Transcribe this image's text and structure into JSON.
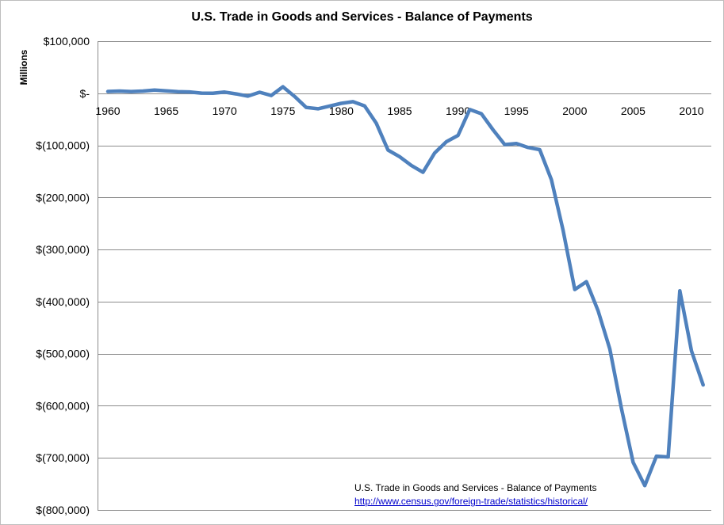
{
  "chart_data": {
    "type": "line",
    "title": "U.S. Trade in Goods and Services - Balance of Payments",
    "ylabel": "Millions",
    "xlabel": "",
    "xlim": [
      1960,
      2011
    ],
    "ylim": [
      -800000,
      100000
    ],
    "x_ticks": [
      1960,
      1965,
      1970,
      1975,
      1980,
      1985,
      1990,
      1995,
      2000,
      2005,
      2010
    ],
    "y_ticks": [
      100000,
      0,
      -100000,
      -200000,
      -300000,
      -400000,
      -500000,
      -600000,
      -700000,
      -800000
    ],
    "y_tick_labels": [
      "$100,000",
      "$-",
      "$(100,000)",
      "$(200,000)",
      "$(300,000)",
      "$(400,000)",
      "$(500,000)",
      "$(600,000)",
      "$(700,000)",
      "$(800,000)"
    ],
    "grid": "horizontal",
    "series_color": "#4f81bd",
    "series": [
      {
        "x": [
          1960,
          1961,
          1962,
          1963,
          1964,
          1965,
          1966,
          1967,
          1968,
          1969,
          1970,
          1971,
          1972,
          1973,
          1974,
          1975,
          1976,
          1977,
          1978,
          1979,
          1980,
          1981,
          1982,
          1983,
          1984,
          1985,
          1986,
          1987,
          1988,
          1989,
          1990,
          1991,
          1992,
          1993,
          1994,
          1995,
          1996,
          1997,
          1998,
          1999,
          2000,
          2001,
          2002,
          2003,
          2004,
          2005,
          2006,
          2007,
          2008,
          2009,
          2010,
          2011
        ],
        "values": [
          3508,
          4195,
          3370,
          4210,
          6022,
          4664,
          2939,
          2604,
          250,
          91,
          2254,
          -1302,
          -5443,
          1900,
          -4293,
          12404,
          -6082,
          -27246,
          -29763,
          -24565,
          -19407,
          -16172,
          -24156,
          -57767,
          -109072,
          -121880,
          -138538,
          -151684,
          -114566,
          -93141,
          -80864,
          -31135,
          -39212,
          -70311,
          -98493,
          -96384,
          -104065,
          -108273,
          -166140,
          -263160,
          -376749,
          -361771,
          -417432,
          -490984,
          -605357,
          -708624,
          -753288,
          -696728,
          -698338,
          -379154,
          -494658,
          -559880
        ]
      }
    ]
  },
  "footnote": {
    "text": "U.S. Trade in Goods and Services - Balance of Payments",
    "link": "http://www.census.gov/foreign-trade/statistics/historical/"
  }
}
